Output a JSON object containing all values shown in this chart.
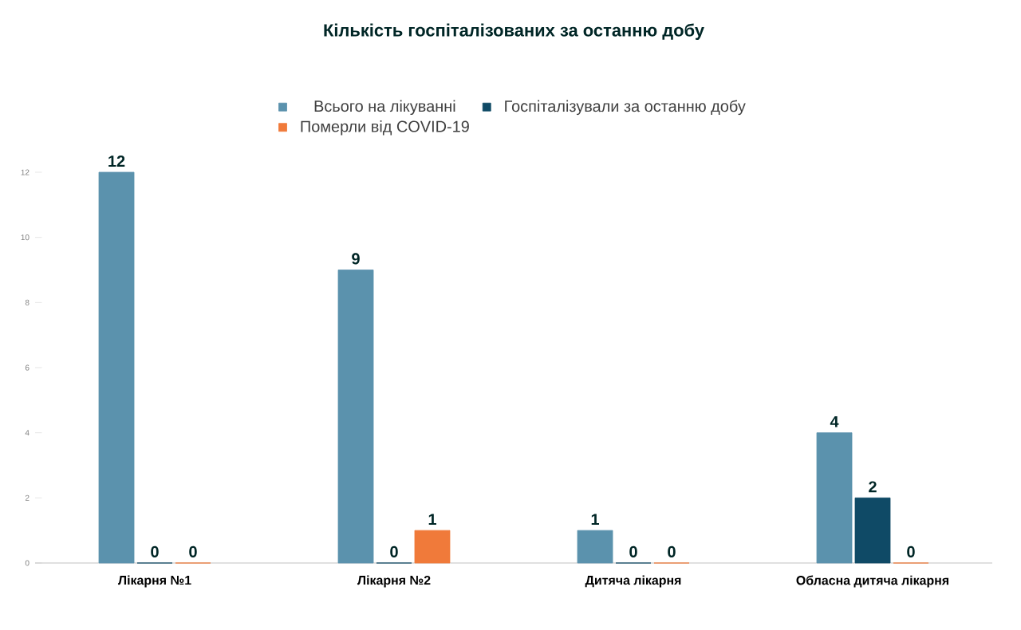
{
  "chart_data": {
    "type": "bar",
    "title": "Кількість госпіталізованих за останню добу",
    "categories": [
      "Лікарня №1",
      "Лікарня №2",
      "Дитяча лікарня",
      "Обласна дитяча лікарня"
    ],
    "series": [
      {
        "name": "Всього на лікуванні",
        "color": "#5b92ad",
        "values": [
          12,
          9,
          1,
          4
        ]
      },
      {
        "name": "Госпіталізували за останню добу",
        "color": "#0f4a66",
        "values": [
          0,
          0,
          0,
          2
        ]
      },
      {
        "name": "Померли від COVID-19",
        "color": "#f07a3a",
        "values": [
          0,
          1,
          0,
          0
        ]
      }
    ],
    "ylim": [
      0,
      12
    ],
    "yticks": [
      0,
      2,
      4,
      6,
      8,
      10,
      12
    ],
    "data_labels": true,
    "legend": "top"
  }
}
